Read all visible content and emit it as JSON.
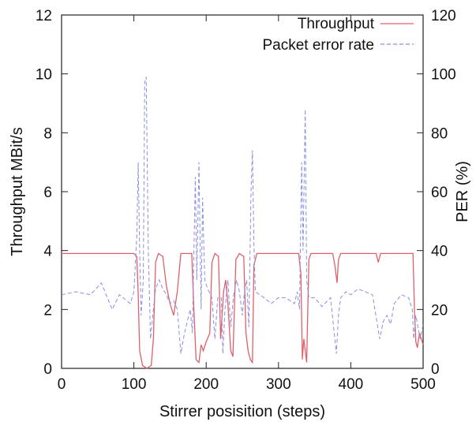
{
  "chart_data": {
    "type": "line",
    "xlabel": "Stirrer posisition (steps)",
    "ylabel_left": "Throughput MBit/s",
    "ylabel_right": "PER (%)",
    "xlim": [
      0,
      500
    ],
    "ylim_left": [
      0,
      12
    ],
    "ylim_right": [
      0,
      120
    ],
    "x_ticks": [
      0,
      100,
      200,
      300,
      400,
      500
    ],
    "y_ticks_left": [
      0,
      2,
      4,
      6,
      8,
      10,
      12
    ],
    "y_ticks_right": [
      0,
      20,
      40,
      60,
      80,
      100,
      120
    ],
    "grid": false,
    "legend_position": "top-right",
    "series": [
      {
        "name": "Throughput",
        "axis": "left",
        "color": "#e0606a",
        "style": "solid",
        "points": [
          [
            0,
            3.9
          ],
          [
            100,
            3.9
          ],
          [
            104,
            3.8
          ],
          [
            106,
            2.5
          ],
          [
            108,
            0.6
          ],
          [
            112,
            0.1
          ],
          [
            118,
            0
          ],
          [
            124,
            0.1
          ],
          [
            127,
            1.0
          ],
          [
            130,
            3.6
          ],
          [
            134,
            3.9
          ],
          [
            140,
            3.8
          ],
          [
            145,
            2.8
          ],
          [
            150,
            2.2
          ],
          [
            155,
            1.8
          ],
          [
            160,
            2.6
          ],
          [
            165,
            3.9
          ],
          [
            180,
            3.9
          ],
          [
            183,
            2.0
          ],
          [
            186,
            0.3
          ],
          [
            190,
            0.2
          ],
          [
            193,
            0.8
          ],
          [
            196,
            0.6
          ],
          [
            200,
            0.9
          ],
          [
            205,
            1.2
          ],
          [
            208,
            3.6
          ],
          [
            212,
            3.9
          ],
          [
            217,
            3.8
          ],
          [
            220,
            1.0
          ],
          [
            224,
            2.6
          ],
          [
            227,
            3.0
          ],
          [
            230,
            2.2
          ],
          [
            234,
            0.6
          ],
          [
            237,
            0.4
          ],
          [
            241,
            3.7
          ],
          [
            246,
            3.9
          ],
          [
            252,
            3.8
          ],
          [
            255,
            1.2
          ],
          [
            258,
            0.6
          ],
          [
            261,
            0.3
          ],
          [
            264,
            0.2
          ],
          [
            266,
            3.5
          ],
          [
            270,
            3.9
          ],
          [
            300,
            3.9
          ],
          [
            328,
            3.9
          ],
          [
            331,
            3.2
          ],
          [
            333,
            0.3
          ],
          [
            335,
            1.0
          ],
          [
            337,
            0.6
          ],
          [
            339,
            0.2
          ],
          [
            342,
            3.7
          ],
          [
            345,
            3.9
          ],
          [
            375,
            3.9
          ],
          [
            378,
            3.5
          ],
          [
            381,
            2.9
          ],
          [
            383,
            3.7
          ],
          [
            386,
            3.9
          ],
          [
            435,
            3.9
          ],
          [
            438,
            3.6
          ],
          [
            441,
            3.9
          ],
          [
            480,
            3.9
          ],
          [
            486,
            3.9
          ],
          [
            488,
            2.0
          ],
          [
            490,
            0.9
          ],
          [
            492,
            0.7
          ],
          [
            495,
            1.2
          ],
          [
            500,
            0.8
          ]
        ]
      },
      {
        "name": "Packet error rate",
        "axis": "right",
        "color": "#8a8fe0",
        "style": "dashed",
        "points": [
          [
            0,
            25
          ],
          [
            20,
            26
          ],
          [
            40,
            25
          ],
          [
            55,
            29
          ],
          [
            70,
            20
          ],
          [
            80,
            25
          ],
          [
            95,
            22
          ],
          [
            100,
            26
          ],
          [
            104,
            45
          ],
          [
            106,
            70
          ],
          [
            108,
            40
          ],
          [
            110,
            18
          ],
          [
            113,
            30
          ],
          [
            115,
            97
          ],
          [
            117,
            99
          ],
          [
            120,
            40
          ],
          [
            123,
            10
          ],
          [
            127,
            20
          ],
          [
            130,
            27
          ],
          [
            135,
            30
          ],
          [
            140,
            27
          ],
          [
            145,
            25
          ],
          [
            150,
            22
          ],
          [
            155,
            23
          ],
          [
            160,
            20
          ],
          [
            165,
            5
          ],
          [
            170,
            12
          ],
          [
            175,
            17
          ],
          [
            178,
            20
          ],
          [
            181,
            12
          ],
          [
            183,
            40
          ],
          [
            185,
            65
          ],
          [
            187,
            30
          ],
          [
            190,
            70
          ],
          [
            193,
            20
          ],
          [
            195,
            58
          ],
          [
            198,
            30
          ],
          [
            202,
            27
          ],
          [
            208,
            24
          ],
          [
            212,
            10
          ],
          [
            216,
            24
          ],
          [
            221,
            24
          ],
          [
            223,
            5
          ],
          [
            226,
            20
          ],
          [
            230,
            30
          ],
          [
            234,
            14
          ],
          [
            238,
            25
          ],
          [
            242,
            30
          ],
          [
            246,
            26
          ],
          [
            250,
            18
          ],
          [
            253,
            26
          ],
          [
            256,
            30
          ],
          [
            259,
            14
          ],
          [
            262,
            60
          ],
          [
            264,
            74
          ],
          [
            266,
            42
          ],
          [
            268,
            26
          ],
          [
            280,
            24
          ],
          [
            290,
            22
          ],
          [
            300,
            24
          ],
          [
            310,
            24
          ],
          [
            322,
            22
          ],
          [
            326,
            26
          ],
          [
            329,
            20
          ],
          [
            332,
            70
          ],
          [
            334,
            40
          ],
          [
            337,
            88
          ],
          [
            339,
            30
          ],
          [
            342,
            24
          ],
          [
            350,
            24
          ],
          [
            360,
            21
          ],
          [
            372,
            24
          ],
          [
            380,
            5
          ],
          [
            383,
            18
          ],
          [
            386,
            24
          ],
          [
            393,
            26
          ],
          [
            400,
            25
          ],
          [
            410,
            27
          ],
          [
            420,
            26
          ],
          [
            430,
            25
          ],
          [
            440,
            10
          ],
          [
            445,
            16
          ],
          [
            450,
            18
          ],
          [
            455,
            15
          ],
          [
            460,
            22
          ],
          [
            470,
            25
          ],
          [
            480,
            24
          ],
          [
            485,
            20
          ],
          [
            487,
            10
          ],
          [
            490,
            18
          ],
          [
            493,
            14
          ],
          [
            496,
            10
          ],
          [
            500,
            15
          ]
        ]
      }
    ]
  }
}
